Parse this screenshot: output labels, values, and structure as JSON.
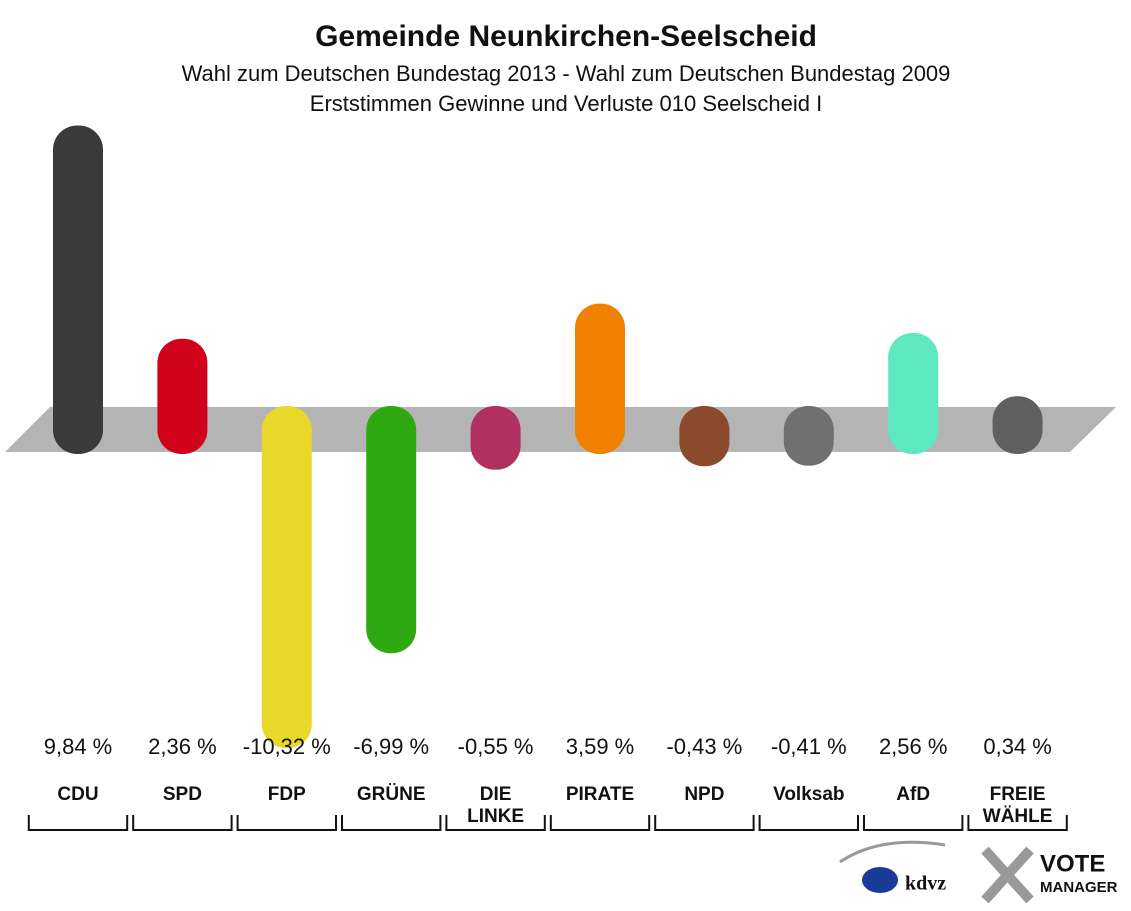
{
  "chart_data": {
    "type": "bar",
    "title": "Gemeinde Neunkirchen-Seelscheid",
    "subtitle": "Wahl zum Deutschen Bundestag 2013 - Wahl zum Deutschen Bundestag 2009",
    "subtitle2": "Erststimmen Gewinne und Verluste 010 Seelscheid I",
    "categories": [
      "CDU",
      "SPD",
      "FDP",
      "GRÜNE",
      "DIE LINKE",
      "PIRATE",
      "NPD",
      "Volksab",
      "AfD",
      "FREIE WÄHLE"
    ],
    "values": [
      9.84,
      2.36,
      -10.32,
      -6.99,
      -0.55,
      3.59,
      -0.43,
      -0.41,
      2.56,
      0.34
    ],
    "value_labels": [
      "9,84 %",
      "2,36 %",
      "-10,32 %",
      "-6,99 %",
      "-0,55 %",
      "3,59 %",
      "-0,43 %",
      "-0,41 %",
      "2,56 %",
      "0,34 %"
    ],
    "colors": [
      "#3a3a3a",
      "#d0021b",
      "#e8d82a",
      "#2eaa10",
      "#b03060",
      "#f08000",
      "#8b4a2b",
      "#707070",
      "#5ee8c0",
      "#606060"
    ]
  },
  "logo": {
    "brand": "kdvz",
    "vote": "VOTE",
    "manager": "MANAGER"
  }
}
